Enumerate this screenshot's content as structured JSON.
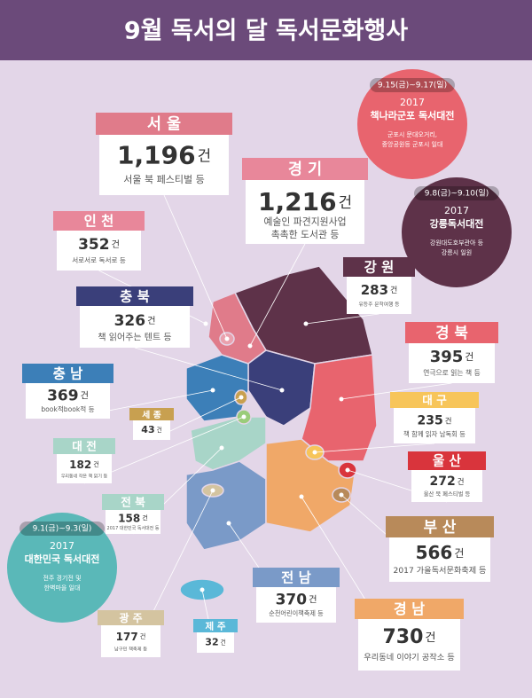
{
  "header": {
    "title": "9월 독서의 달 독서문화행사"
  },
  "regions": [
    {
      "name": "서 울",
      "count": "1,196",
      "unit": "건",
      "desc": [
        "서울 북 페스티벌 등"
      ]
    },
    {
      "name": "경 기",
      "count": "1,216",
      "unit": "건",
      "desc": [
        "예술인 파견지원사업",
        "촉촉한 도서관 등"
      ]
    },
    {
      "name": "인 천",
      "count": "352",
      "unit": "건",
      "desc": [
        "서로서로 독서로 등"
      ]
    },
    {
      "name": "충 북",
      "count": "326",
      "unit": "건",
      "desc": [
        "책 읽어주는 텐트 등"
      ]
    },
    {
      "name": "강 원",
      "count": "283",
      "unit": "건",
      "desc": [
        "유등주 문학여행 등"
      ]
    },
    {
      "name": "경 북",
      "count": "395",
      "unit": "건",
      "desc": [
        "연극으로 읽는 책 등"
      ]
    },
    {
      "name": "충 남",
      "count": "369",
      "unit": "건",
      "desc": [
        "book적book적 등"
      ]
    },
    {
      "name": "세 종",
      "count": "43",
      "unit": "건",
      "desc": []
    },
    {
      "name": "대 구",
      "count": "235",
      "unit": "건",
      "desc": [
        "책 함께 읽자 남독회 등"
      ]
    },
    {
      "name": "대 전",
      "count": "182",
      "unit": "건",
      "desc": [
        "우리동네 작은 책 읽기 등"
      ]
    },
    {
      "name": "울 산",
      "count": "272",
      "unit": "건",
      "desc": [
        "울산 북 페스티벌 등"
      ]
    },
    {
      "name": "전 북",
      "count": "158",
      "unit": "건",
      "desc": [
        "2017 대한민국 독서대전 등"
      ]
    },
    {
      "name": "부 산",
      "count": "566",
      "unit": "건",
      "desc": [
        "2017 가을독서문화축제 등"
      ]
    },
    {
      "name": "전 남",
      "count": "370",
      "unit": "건",
      "desc": [
        "순천어린이책축제 등"
      ]
    },
    {
      "name": "경 남",
      "count": "730",
      "unit": "건",
      "desc": [
        "우리동네 이야기 공작소 등"
      ]
    },
    {
      "name": "광 주",
      "count": "177",
      "unit": "건",
      "desc": [
        "남구민 책축제 등"
      ]
    },
    {
      "name": "제 주",
      "count": "32",
      "unit": "건",
      "desc": []
    }
  ],
  "festivals": [
    {
      "date": "9.15(금)~9.17(일)",
      "year": "2017",
      "name": "책나라군포 독서대전",
      "desc": [
        "군포시 문대오거리,",
        "중앙공원등 군포시 일대"
      ]
    },
    {
      "date": "9.8(금)~9.10(일)",
      "year": "2017",
      "name": "강릉독서대전",
      "desc": [
        "강원대도호부관아 등",
        "강릉시 일원"
      ]
    },
    {
      "date": "9.1(금)~9.3(일)",
      "year": "2017",
      "name": "대한민국 독서대전",
      "desc": [
        "전주 경기전 및",
        "한벽마을 일대"
      ]
    }
  ]
}
